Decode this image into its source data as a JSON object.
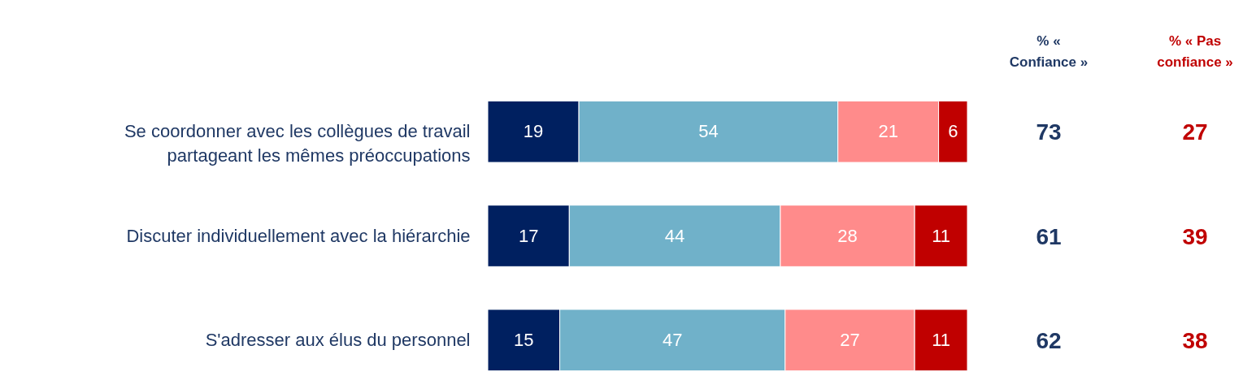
{
  "chart_data": [
    {
      "type": "bar",
      "orientation": "horizontal",
      "stacked": true,
      "data_labels": true,
      "categories": [
        "Se coordonner  avec les collègues de travail partageant les mêmes préoccupations",
        "Discuter individuellement avec la hiérarchie",
        "S'adresser aux élus du personnel"
      ],
      "series": [
        {
          "color": "#002060",
          "values": [
            19,
            17,
            15
          ]
        },
        {
          "color": "#70b1c9",
          "values": [
            54,
            44,
            47
          ]
        },
        {
          "color": "#ff8b8b",
          "values": [
            21,
            28,
            27
          ]
        },
        {
          "color": "#c00000",
          "values": [
            6,
            11,
            11
          ]
        }
      ]
    },
    {
      "type": "other",
      "title": "% « Confiance »",
      "color": "#1f3864",
      "data_labels": true,
      "values": [
        73,
        61,
        62
      ]
    },
    {
      "type": "other",
      "title": "% « Pas confiance »",
      "color": "#c00000",
      "data_labels": true,
      "values": [
        27,
        39,
        38
      ]
    }
  ]
}
